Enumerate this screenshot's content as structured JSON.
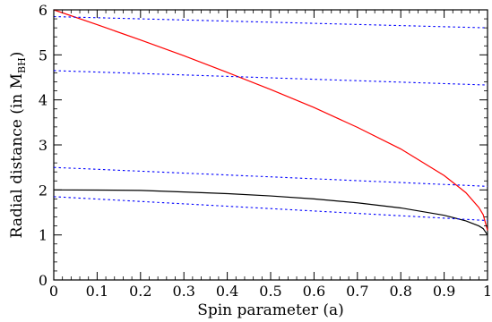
{
  "chart_data": {
    "type": "line",
    "title": "",
    "xlabel": "Spin parameter (a)",
    "ylabel": "Radial distance (in M",
    "ylabel_subscript": "BH",
    "ylabel_close": ")",
    "xlim": [
      0,
      1
    ],
    "ylim": [
      0,
      6
    ],
    "x_ticks": [
      {
        "value": 0,
        "label": "0"
      },
      {
        "value": 0.1,
        "label": "0.1"
      },
      {
        "value": 0.2,
        "label": "0.2"
      },
      {
        "value": 0.3,
        "label": "0.3"
      },
      {
        "value": 0.4,
        "label": "0.4"
      },
      {
        "value": 0.5,
        "label": "0.5"
      },
      {
        "value": 0.6,
        "label": "0.6"
      },
      {
        "value": 0.7,
        "label": "0.7"
      },
      {
        "value": 0.8,
        "label": "0.8"
      },
      {
        "value": 0.9,
        "label": "0.9"
      },
      {
        "value": 1,
        "label": "1"
      }
    ],
    "y_ticks": [
      {
        "value": 0,
        "label": "0"
      },
      {
        "value": 1,
        "label": "1"
      },
      {
        "value": 2,
        "label": "2"
      },
      {
        "value": 3,
        "label": "3"
      },
      {
        "value": 4,
        "label": "4"
      },
      {
        "value": 5,
        "label": "5"
      },
      {
        "value": 6,
        "label": "6"
      }
    ],
    "grid": false,
    "series": [
      {
        "color": "#ff0000",
        "style": "solid",
        "x": [
          0,
          0.1,
          0.2,
          0.3,
          0.4,
          0.5,
          0.6,
          0.7,
          0.8,
          0.9,
          0.95,
          0.98,
          0.99,
          1.0
        ],
        "y": [
          6.0,
          5.67,
          5.33,
          4.98,
          4.61,
          4.23,
          3.83,
          3.39,
          2.91,
          2.32,
          1.94,
          1.61,
          1.45,
          1.1
        ]
      },
      {
        "color": "#000000",
        "style": "solid",
        "x": [
          0,
          0.1,
          0.2,
          0.3,
          0.4,
          0.5,
          0.6,
          0.7,
          0.8,
          0.9,
          0.95,
          0.98,
          0.99,
          1.0
        ],
        "y": [
          2.0,
          1.997,
          1.99,
          1.954,
          1.917,
          1.866,
          1.8,
          1.714,
          1.6,
          1.436,
          1.312,
          1.2,
          1.141,
          1.0
        ]
      },
      {
        "color": "#0000ff",
        "style": "dotted",
        "x": [
          0,
          1
        ],
        "y": [
          5.85,
          5.6
        ]
      },
      {
        "color": "#0000ff",
        "style": "dotted",
        "x": [
          0,
          1
        ],
        "y": [
          4.65,
          4.33
        ]
      },
      {
        "color": "#0000ff",
        "style": "dotted",
        "x": [
          0,
          1
        ],
        "y": [
          2.5,
          2.08
        ]
      },
      {
        "color": "#0000ff",
        "style": "dotted",
        "x": [
          0,
          1
        ],
        "y": [
          1.85,
          1.32
        ]
      }
    ]
  }
}
